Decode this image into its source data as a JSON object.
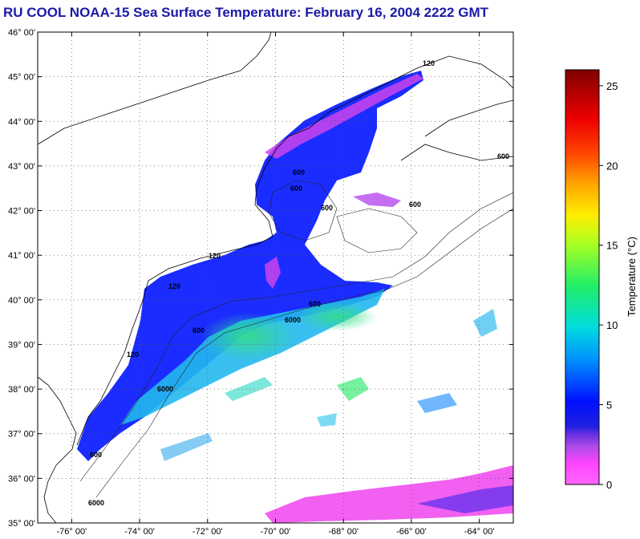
{
  "title": "RU COOL  NOAA-15  Sea Surface Temperature:  February 16, 2004 2222 GMT",
  "map": {
    "lon_range": [
      -77,
      -63
    ],
    "lat_range": [
      35,
      46
    ],
    "lat_ticks": [
      {
        "value": 46,
        "label": "46° 00'"
      },
      {
        "value": 45,
        "label": "45° 00'"
      },
      {
        "value": 44,
        "label": "44° 00'"
      },
      {
        "value": 43,
        "label": "43° 00'"
      },
      {
        "value": 42,
        "label": "42° 00'"
      },
      {
        "value": 41,
        "label": "41° 00'"
      },
      {
        "value": 40,
        "label": "40° 00'"
      },
      {
        "value": 39,
        "label": "39° 00'"
      },
      {
        "value": 38,
        "label": "38° 00'"
      },
      {
        "value": 37,
        "label": "37° 00'"
      },
      {
        "value": 36,
        "label": "36° 00'"
      },
      {
        "value": 35,
        "label": "35° 00'"
      }
    ],
    "lon_ticks": [
      {
        "value": -76,
        "label": "-76° 00'"
      },
      {
        "value": -74,
        "label": "-74° 00'"
      },
      {
        "value": -72,
        "label": "-72° 00'"
      },
      {
        "value": -70,
        "label": "-70° 00'"
      },
      {
        "value": -68,
        "label": "-68° 00'"
      },
      {
        "value": -66,
        "label": "-66° 00'"
      },
      {
        "value": -64,
        "label": "-64° 00'"
      }
    ],
    "grid": true,
    "contour_labels": [
      "120",
      "600",
      "600",
      "600",
      "600",
      "600",
      "600",
      "6000",
      "120",
      "120",
      "600",
      "6000",
      "120",
      "600",
      "6000"
    ]
  },
  "colorbar": {
    "title": "Temperature (°C)",
    "min": 0,
    "max": 26,
    "ticks": [
      {
        "value": 0,
        "label": "0"
      },
      {
        "value": 5,
        "label": "5"
      },
      {
        "value": 10,
        "label": "10"
      },
      {
        "value": 15,
        "label": "15"
      },
      {
        "value": 20,
        "label": "20"
      },
      {
        "value": 25,
        "label": "25"
      }
    ],
    "colors": {
      "c0": "#ff66ff",
      "c3": "#8a2be2",
      "c4": "#0000ff",
      "c9": "#00ccff",
      "c13": "#33ff33",
      "c16": "#ccff00",
      "c18": "#ffcc00",
      "c21": "#ff3300",
      "c26": "#800000"
    }
  }
}
